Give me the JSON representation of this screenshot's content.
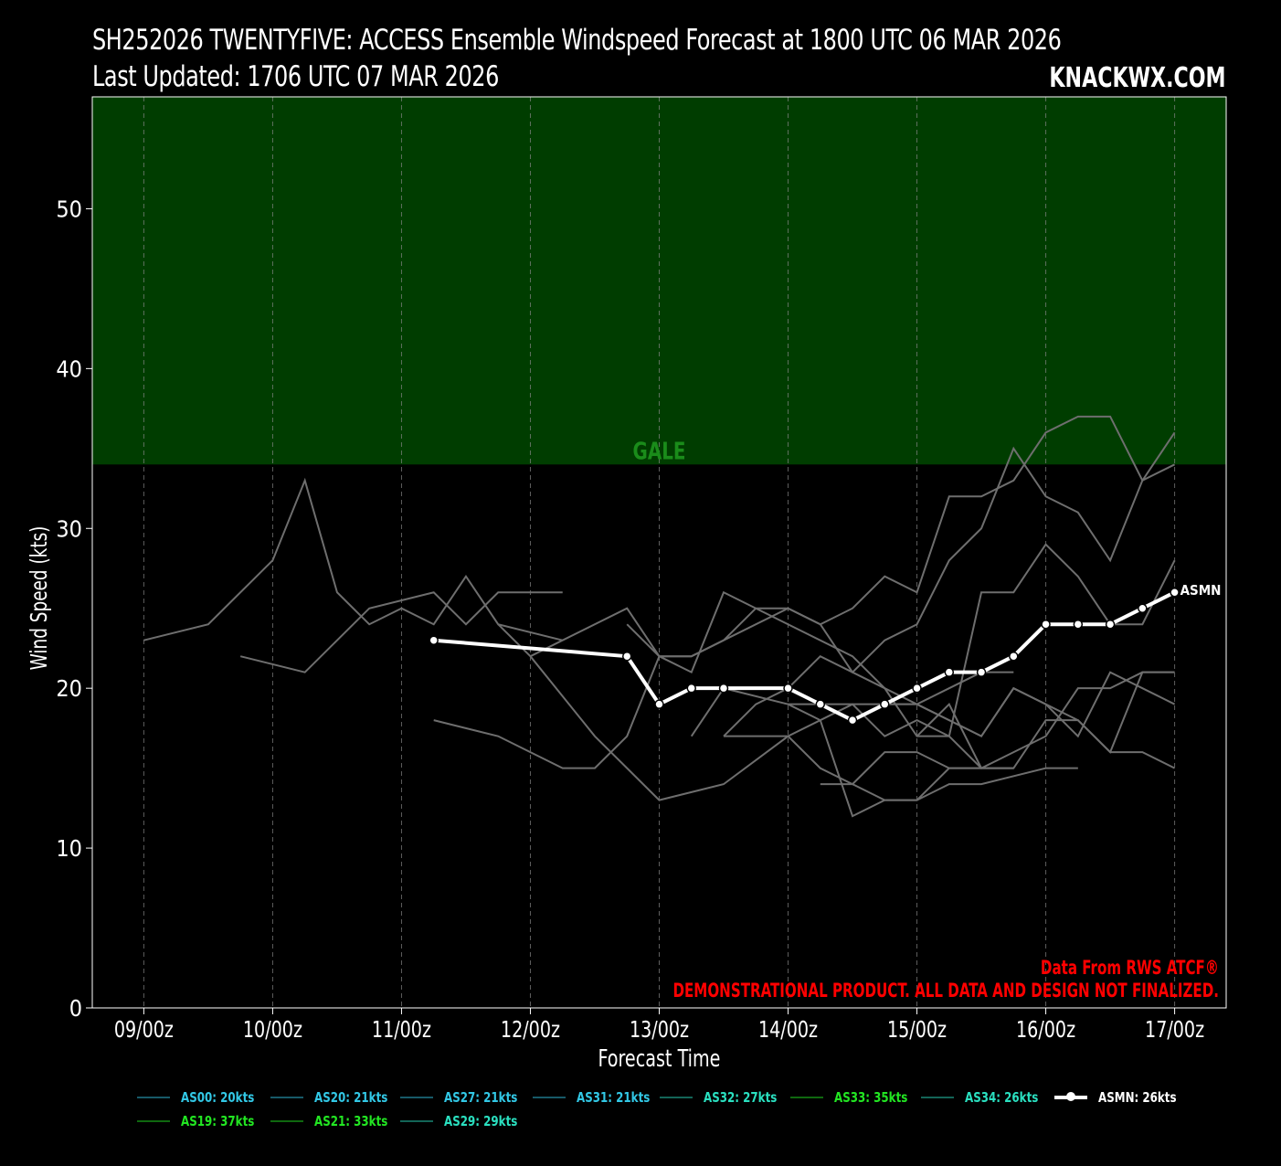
{
  "header": {
    "title": "SH252026 TWENTYFIVE: ACCESS Ensemble Windspeed Forecast at 1800 UTC 06 MAR 2026",
    "updated": "Last Updated: 1706 UTC 07 MAR 2026",
    "brand": "KNACKWX.COM"
  },
  "notes": {
    "source": "Data From RWS ATCF®",
    "disclaimer": "DEMONSTRATIONAL PRODUCT. ALL DATA AND DESIGN NOT FINALIZED."
  },
  "colors": {
    "background": "#000000",
    "gale_band": "#003d00",
    "gale_text": "#1a8c1a",
    "member_line": "#6e6e6e",
    "mean_line": "#ffffff",
    "note_red": "#ff0000",
    "grid": "#888888"
  },
  "chart_data": {
    "type": "line",
    "title": "SH252026 TWENTYFIVE: ACCESS Ensemble Windspeed Forecast at 1800 UTC 06 MAR 2026",
    "xlabel": "Forecast Time",
    "ylabel": "Wind Speed (kts)",
    "ylim": [
      0,
      57
    ],
    "yticks": [
      0,
      10,
      20,
      30,
      40,
      50
    ],
    "x_unit_note": "x values are days of March 2026 (UTC)",
    "xlim": [
      8.6,
      17.4
    ],
    "xticks": [
      9,
      10,
      11,
      12,
      13,
      14,
      15,
      16,
      17
    ],
    "xtick_labels": [
      "09/00z",
      "10/00z",
      "11/00z",
      "12/00z",
      "13/00z",
      "14/00z",
      "15/00z",
      "16/00z",
      "17/00z"
    ],
    "grid": "vertical dashed",
    "threshold_band": {
      "label": "GALE",
      "from": 34,
      "to": 57
    },
    "mean_series": {
      "name": "ASMN",
      "x": [
        11.25,
        12.75,
        13.0,
        13.25,
        13.5,
        14.0,
        14.25,
        14.5,
        14.75,
        15.0,
        15.25,
        15.5,
        15.75,
        16.0,
        16.25,
        16.5,
        16.75,
        17.0
      ],
      "values": [
        23,
        22,
        19,
        20,
        20,
        20,
        19,
        18,
        19,
        20,
        21,
        21,
        22,
        24,
        24,
        24,
        25,
        26
      ],
      "end_label": "ASMN"
    },
    "member_lines": [
      {
        "x": [
          9.0,
          9.5,
          10.0,
          10.25,
          10.5,
          10.75,
          11.0,
          11.25,
          11.5,
          11.75,
          12.25
        ],
        "values": [
          23,
          24,
          28,
          33,
          26,
          24,
          25,
          24,
          27,
          24,
          23
        ]
      },
      {
        "x": [
          9.75,
          10.25,
          10.75,
          11.25,
          11.5,
          11.75,
          12.25
        ],
        "values": [
          22,
          21,
          25,
          26,
          24,
          26,
          26
        ]
      },
      {
        "x": [
          11.25,
          11.75,
          12.25,
          12.5,
          12.75,
          13.0,
          13.25,
          13.5,
          13.75,
          14.0,
          14.25,
          14.5,
          14.75,
          15.0,
          15.25,
          15.5,
          15.75,
          16.0,
          16.25,
          16.5,
          16.75,
          17.0
        ],
        "values": [
          18,
          17,
          15,
          15,
          17,
          22,
          22,
          23,
          25,
          25,
          24,
          25,
          27,
          26,
          32,
          32,
          33,
          36,
          37,
          37,
          33,
          34
        ]
      },
      {
        "x": [
          11.75,
          12.0,
          12.5,
          12.75,
          13.0,
          13.5,
          14.0,
          14.5,
          15.0,
          15.5,
          15.75,
          16.0,
          16.25,
          16.5,
          16.75,
          17.0
        ],
        "values": [
          24,
          22,
          17,
          15,
          13,
          14,
          17,
          19,
          19,
          17,
          20,
          19,
          18,
          16,
          16,
          15
        ]
      },
      {
        "x": [
          12.0,
          12.75,
          13.0,
          13.25,
          13.5,
          14.0,
          14.5,
          14.75,
          15.0,
          15.25,
          15.5,
          15.75,
          16.0,
          16.25,
          16.5,
          17.0
        ],
        "values": [
          22,
          25,
          22,
          21,
          26,
          24,
          22,
          20,
          19,
          18,
          17,
          20,
          19,
          17,
          21,
          19
        ]
      },
      {
        "x": [
          12.75,
          13.0,
          13.25,
          13.5,
          14.0,
          14.25,
          14.5,
          14.75,
          15.0,
          15.25,
          15.5,
          15.75,
          16.0,
          16.25,
          16.5,
          16.75,
          17.0
        ],
        "values": [
          24,
          22,
          22,
          23,
          25,
          24,
          21,
          23,
          24,
          28,
          30,
          35,
          32,
          31,
          28,
          33,
          36
        ]
      },
      {
        "x": [
          13.25,
          13.5,
          14.0,
          14.25,
          14.5,
          14.75,
          15.0,
          15.25,
          15.5,
          15.75,
          16.0,
          16.25,
          16.5,
          16.75,
          17.0
        ],
        "values": [
          17,
          20,
          19,
          18,
          12,
          13,
          13,
          15,
          15,
          15,
          18,
          18,
          16,
          21,
          21
        ]
      },
      {
        "x": [
          13.5,
          13.75,
          14.0,
          14.25,
          14.5,
          14.75,
          15.0,
          15.25,
          15.5,
          15.75,
          16.0,
          16.25,
          16.5,
          16.75,
          17.0
        ],
        "values": [
          17,
          19,
          20,
          22,
          21,
          20,
          17,
          17,
          26,
          26,
          29,
          27,
          24,
          24,
          28
        ]
      },
      {
        "x": [
          13.5,
          14.0,
          14.25,
          14.5,
          14.75,
          15.0,
          15.25,
          15.5,
          15.75
        ],
        "values": [
          17,
          17,
          15,
          14,
          16,
          16,
          15,
          15,
          15
        ]
      },
      {
        "x": [
          14.0,
          14.5,
          14.75,
          15.0,
          15.25,
          15.5,
          15.75
        ],
        "values": [
          19,
          19,
          17,
          18,
          17,
          15,
          15
        ]
      },
      {
        "x": [
          14.25,
          14.5,
          14.75,
          15.0,
          15.25,
          15.5,
          16.0,
          16.25
        ],
        "values": [
          14,
          14,
          13,
          13,
          14,
          14,
          15,
          15
        ]
      },
      {
        "x": [
          14.75,
          15.0,
          15.25,
          15.5,
          15.75
        ],
        "values": [
          19,
          19,
          20,
          21,
          21
        ]
      },
      {
        "x": [
          15.0,
          15.25,
          15.5,
          16.0,
          16.25,
          16.5,
          16.75,
          17.0
        ],
        "values": [
          17,
          19,
          15,
          17,
          20,
          20,
          21,
          21
        ]
      }
    ],
    "legend": [
      {
        "label": "AS00: 20kts",
        "color": "#32c8e6"
      },
      {
        "label": "AS20: 21kts",
        "color": "#32c8e6"
      },
      {
        "label": "AS27: 21kts",
        "color": "#32c8e6"
      },
      {
        "label": "AS31: 21kts",
        "color": "#32c8e6"
      },
      {
        "label": "AS32: 27kts",
        "color": "#2ae0c0"
      },
      {
        "label": "AS33: 35kts",
        "color": "#22e622"
      },
      {
        "label": "AS34: 26kts",
        "color": "#2ae0c0"
      },
      {
        "label": "ASMN: 26kts",
        "color": "#ffffff"
      },
      {
        "label": "AS19: 37kts",
        "color": "#22e622"
      },
      {
        "label": "AS21: 33kts",
        "color": "#22e622"
      },
      {
        "label": "AS29: 29kts",
        "color": "#2ae0c0"
      }
    ]
  }
}
